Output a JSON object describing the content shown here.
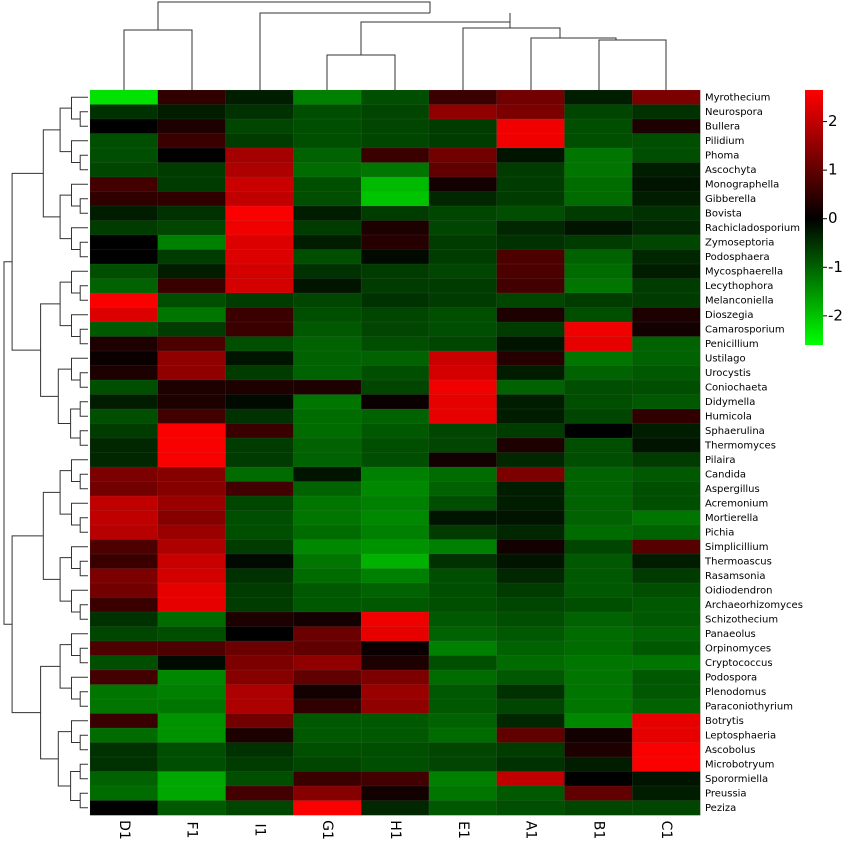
{
  "chart_data": {
    "type": "heatmap",
    "columns": [
      "D1",
      "F1",
      "I1",
      "G1",
      "H1",
      "E1",
      "A1",
      "B1",
      "C1"
    ],
    "rows": [
      "Myrothecium",
      "Neurospora",
      "Bullera",
      "Pilidium",
      "Phoma",
      "Ascochyta",
      "Monographella",
      "Gibberella",
      "Bovista",
      "Rachicladosporium",
      "Zymoseptoria",
      "Podosphaera",
      "Mycosphaerella",
      "Lecythophora",
      "Melanconiella",
      "Dioszegia",
      "Camarosporium",
      "Penicillium",
      "Ustilago",
      "Urocystis",
      "Coniochaeta",
      "Didymella",
      "Humicola",
      "Sphaerulina",
      "Thermomyces",
      "Pilaira",
      "Candida",
      "Aspergillus",
      "Acremonium",
      "Mortierella",
      "Pichia",
      "Simplicillium",
      "Thermoascus",
      "Rasamsonia",
      "Oidiodendron",
      "Archaeorhizomyces",
      "Schizothecium",
      "Panaeolus",
      "Orpinomyces",
      "Cryptococcus",
      "Podospora",
      "Plenodomus",
      "Paraconiothyrium",
      "Botrytis",
      "Leptosphaeria",
      "Ascobolus",
      "Microbotryum",
      "Sporormiella",
      "Preussia",
      "Peziza"
    ],
    "values": [
      [
        -2.3,
        0.5,
        -0.3,
        -1.3,
        -0.8,
        0.6,
        1.2,
        -0.3,
        1.3
      ],
      [
        -0.5,
        -0.3,
        -0.5,
        -0.8,
        -0.7,
        1.5,
        1.3,
        -0.7,
        -0.5
      ],
      [
        0,
        0.3,
        -0.7,
        -0.8,
        -0.7,
        -0.6,
        2.5,
        -0.8,
        0.3
      ],
      [
        -0.8,
        0.6,
        -0.6,
        -0.8,
        -0.7,
        -0.6,
        2.5,
        -0.8,
        -0.8
      ],
      [
        -0.8,
        0,
        1.7,
        -1,
        0.6,
        1.2,
        -0.2,
        -1.2,
        -0.8
      ],
      [
        -0.7,
        -0.6,
        1.8,
        -1.1,
        -1.2,
        1,
        -0.6,
        -1.2,
        -0.3
      ],
      [
        0.7,
        -0.6,
        2.1,
        -0.8,
        -1.9,
        0.2,
        -0.6,
        -1.1,
        -0.2
      ],
      [
        0.5,
        0.5,
        2.0,
        -0.8,
        -2.0,
        -0.4,
        -0.6,
        -1.1,
        -0.3
      ],
      [
        -0.3,
        -0.5,
        2.6,
        -0.3,
        -0.6,
        -0.7,
        -0.8,
        -0.6,
        -0.5
      ],
      [
        -0.6,
        -0.7,
        2.5,
        -0.6,
        0.3,
        -0.7,
        -0.4,
        -0.2,
        -0.4
      ],
      [
        0,
        -1.3,
        2.3,
        -0.3,
        0.4,
        -0.6,
        -0.5,
        -0.6,
        -0.7
      ],
      [
        0,
        -0.6,
        2.3,
        -0.8,
        -0.1,
        -0.6,
        0.8,
        -1,
        -0.4
      ],
      [
        -0.8,
        -0.3,
        2.2,
        -0.5,
        -0.6,
        -0.7,
        0.8,
        -1.1,
        -0.3
      ],
      [
        -1,
        0.6,
        2.2,
        -0.2,
        -0.6,
        -0.6,
        0.7,
        -1.2,
        -0.6
      ],
      [
        2.6,
        -0.8,
        -0.6,
        -0.7,
        -0.5,
        -0.6,
        -0.7,
        -0.6,
        -0.6
      ],
      [
        2.3,
        -1.2,
        0.6,
        -0.8,
        -0.7,
        -0.8,
        0.3,
        -0.8,
        0.3
      ],
      [
        -0.9,
        -0.6,
        0.6,
        -0.9,
        -0.7,
        -0.8,
        -0.6,
        2.5,
        0.2
      ],
      [
        0.3,
        0.8,
        -0.8,
        -1,
        -0.8,
        -0.7,
        -0.2,
        2.4,
        -1
      ],
      [
        0.1,
        1.5,
        -0.2,
        -1,
        -1,
        2.1,
        0.4,
        -1.2,
        -1
      ],
      [
        0.3,
        1.5,
        -0.6,
        -1,
        -0.8,
        2.2,
        -0.3,
        -1,
        -0.9
      ],
      [
        -0.8,
        0.3,
        0.3,
        0.3,
        -0.7,
        2.5,
        -1,
        -0.8,
        -0.8
      ],
      [
        -0.3,
        0.3,
        -0.1,
        -1.2,
        0.1,
        2.4,
        -0.3,
        -0.8,
        -0.9
      ],
      [
        -0.8,
        0.7,
        -0.5,
        -1.1,
        -1,
        2.4,
        -0.3,
        -0.7,
        0.5
      ],
      [
        -0.6,
        2.6,
        0.6,
        -1.1,
        -0.9,
        -0.7,
        -0.6,
        0,
        -0.3
      ],
      [
        -0.4,
        2.6,
        -0.6,
        -1,
        -0.8,
        -0.7,
        0.3,
        -0.8,
        -0.2
      ],
      [
        -0.4,
        2.6,
        -0.6,
        -1,
        -0.8,
        0.2,
        -0.4,
        -0.8,
        -0.6
      ],
      [
        1.3,
        1.4,
        -1.1,
        -0.2,
        -1.3,
        -1.1,
        1.3,
        -1,
        -0.9
      ],
      [
        1.2,
        1.4,
        0.7,
        -1,
        -1.4,
        -1,
        -0.3,
        -1,
        -0.8
      ],
      [
        2.0,
        1.6,
        -0.7,
        -1.2,
        -1.3,
        -0.8,
        -0.3,
        -1,
        -0.8
      ],
      [
        2.0,
        1.4,
        -0.8,
        -1.2,
        -1.4,
        -0.2,
        -0.2,
        -1,
        -1.2
      ],
      [
        1.9,
        1.6,
        -0.8,
        -1.1,
        -1.3,
        -0.6,
        -0.4,
        -1.1,
        -1
      ],
      [
        0.8,
        1.8,
        -0.6,
        -1.4,
        -1.5,
        -1.3,
        0.2,
        -0.7,
        0.9
      ],
      [
        0.6,
        2.1,
        -0.1,
        -1.2,
        -1.8,
        -0.5,
        -0.2,
        -0.9,
        -0.3
      ],
      [
        1.3,
        2.2,
        -0.5,
        -1.1,
        -1.3,
        -0.8,
        -0.4,
        -0.9,
        -0.6
      ],
      [
        1.2,
        2.4,
        -0.6,
        -0.9,
        -1,
        -0.8,
        -0.6,
        -0.9,
        -0.8
      ],
      [
        0.6,
        2.4,
        -0.6,
        -0.9,
        -0.9,
        -0.8,
        -0.7,
        -0.8,
        -0.9
      ],
      [
        -0.5,
        -1.1,
        0.3,
        0.2,
        2.5,
        -0.9,
        -0.8,
        -1,
        -0.9
      ],
      [
        -0.7,
        -0.8,
        0,
        1.1,
        2.4,
        -1,
        -0.9,
        -1.1,
        -1
      ],
      [
        0.8,
        0.8,
        1.1,
        1,
        0.1,
        -1.3,
        -1,
        -1.1,
        -0.9
      ],
      [
        -0.8,
        -0.1,
        1.3,
        1.5,
        0.3,
        -0.8,
        -1.1,
        -1.2,
        -1.2
      ],
      [
        0.7,
        -1.4,
        1.4,
        1,
        1.3,
        -1.1,
        -0.9,
        -1.2,
        -0.9
      ],
      [
        -1.2,
        -1.3,
        1.8,
        0.2,
        1.6,
        -0.9,
        -0.5,
        -1.2,
        -0.9
      ],
      [
        -1.2,
        -1.2,
        1.8,
        0.5,
        1.5,
        -0.9,
        -0.7,
        -1.2,
        -1
      ],
      [
        0.6,
        -1.5,
        1.2,
        -0.9,
        -0.9,
        -1,
        -0.4,
        -1.4,
        2.4
      ],
      [
        -1.1,
        -1.5,
        0.3,
        -0.9,
        -0.9,
        -1.1,
        1,
        0.2,
        2.4
      ],
      [
        -0.5,
        -0.8,
        -0.5,
        -0.8,
        -0.8,
        -0.7,
        -0.6,
        0.3,
        2.6
      ],
      [
        -0.5,
        -0.8,
        -0.6,
        -0.7,
        -0.8,
        -0.7,
        -0.5,
        -0.3,
        2.6
      ],
      [
        -1,
        -1.7,
        -0.8,
        0.6,
        0.7,
        -1.3,
        2.0,
        0,
        -0.2
      ],
      [
        -1.1,
        -1.7,
        0.7,
        1.4,
        0.2,
        -1.2,
        -0.9,
        1,
        -0.3
      ],
      [
        0,
        -0.9,
        -0.7,
        2.6,
        -0.4,
        -0.9,
        -0.8,
        -0.7,
        -0.7
      ]
    ],
    "zlim": [
      -2.6,
      2.65
    ],
    "colorbar_ticks": [
      -2,
      -1,
      0,
      1,
      2
    ],
    "colors": {
      "low": "#00ff00",
      "mid": "#000000",
      "high": "#ff0000"
    }
  }
}
